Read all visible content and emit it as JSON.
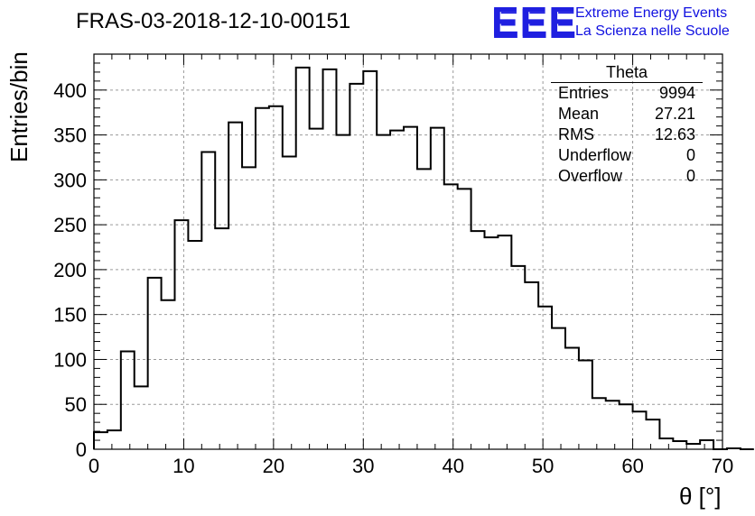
{
  "chart_data": {
    "type": "bar",
    "title": "FRAS-03-2018-12-10-00151",
    "xlabel": "θ [°]",
    "ylabel": "Entries/bin",
    "xlim": [
      0,
      70
    ],
    "ylim": [
      0,
      440
    ],
    "grid": true,
    "x_ticks": [
      0,
      10,
      20,
      30,
      40,
      50,
      60,
      70
    ],
    "y_ticks": [
      0,
      50,
      100,
      150,
      200,
      250,
      300,
      350,
      400
    ],
    "bin_width": 1.5,
    "values": [
      19,
      21,
      109,
      70,
      191,
      166,
      255,
      232,
      331,
      246,
      364,
      314,
      380,
      382,
      326,
      425,
      357,
      423,
      350,
      407,
      421,
      350,
      355,
      359,
      312,
      358,
      295,
      290,
      243,
      236,
      238,
      204,
      186,
      159,
      135,
      113,
      99,
      57,
      54,
      50,
      42,
      33,
      12,
      9,
      6,
      10,
      0,
      1,
      0
    ],
    "stats_box": {
      "title": "Theta",
      "rows": [
        {
          "label": "Entries",
          "value": "9994"
        },
        {
          "label": "Mean",
          "value": "27.21"
        },
        {
          "label": "RMS",
          "value": "12.63"
        },
        {
          "label": "Underflow",
          "value": "0"
        },
        {
          "label": "Overflow",
          "value": "0"
        }
      ]
    }
  },
  "logo": {
    "mark": "EEE",
    "line1": "Extreme Energy Events",
    "line2": "La Scienza nelle Scuole",
    "color": "#1f1fe0"
  }
}
